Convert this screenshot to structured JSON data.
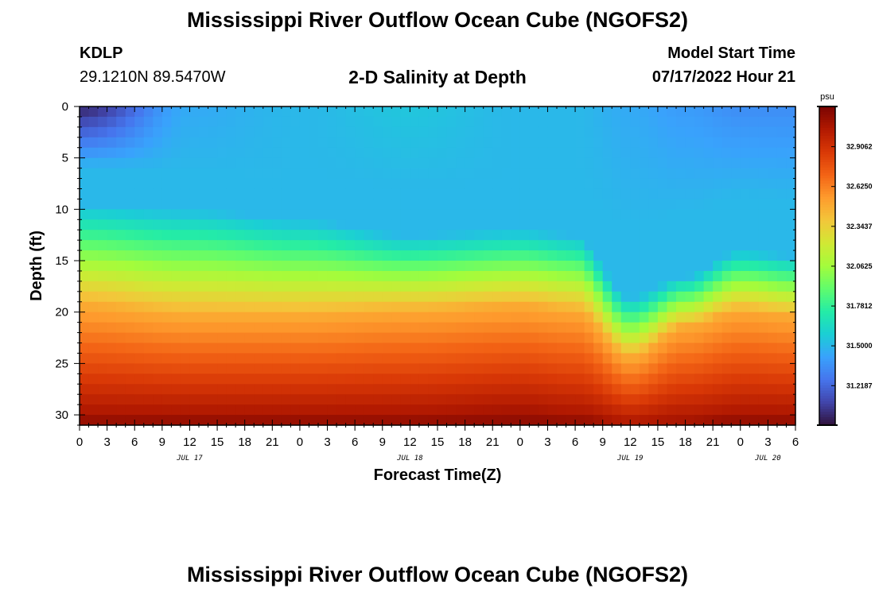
{
  "header": {
    "title": "Mississippi River Outflow Ocean Cube (NGOFS2)",
    "station_id": "KDLP",
    "station_coords": "29.1210N  89.5470W",
    "subtitle": "2-D Salinity at Depth",
    "model_start_label": "Model Start Time",
    "model_start_value": "07/17/2022 Hour 21"
  },
  "footer": {
    "title": "Mississippi River Outflow Ocean Cube (NGOFS2)"
  },
  "chart_data": {
    "type": "heatmap",
    "title": "2-D Salinity at Depth",
    "xlabel": "Forecast Time(Z)",
    "ylabel": "Depth (ft)",
    "x_tick_labels": [
      "0",
      "3",
      "6",
      "9",
      "12",
      "15",
      "18",
      "21",
      "0",
      "3",
      "6",
      "9",
      "12",
      "15",
      "18",
      "21",
      "0",
      "3",
      "6",
      "9",
      "12",
      "15",
      "18",
      "21",
      "0",
      "3",
      "6"
    ],
    "x_range_hours": [
      0,
      78
    ],
    "date_labels": [
      {
        "text": "JUL 17",
        "hour": 12
      },
      {
        "text": "JUL 18",
        "hour": 36
      },
      {
        "text": "JUL 19",
        "hour": 60
      },
      {
        "text": "JUL 20",
        "hour": 75
      }
    ],
    "y_ticks": [
      0,
      5,
      10,
      15,
      20,
      25,
      30
    ],
    "y_range": [
      0,
      31
    ],
    "y_inverted": true,
    "colorbar": {
      "unit": "psu",
      "ticks": [
        "31.2187",
        "31.5000",
        "31.7812",
        "32.0625",
        "32.3437",
        "32.6250",
        "32.9062"
      ],
      "range": [
        30.94,
        33.19
      ],
      "colors": [
        "#30123b",
        "#4145ab",
        "#4675ed",
        "#39a2fc",
        "#1bcfd4",
        "#24eca6",
        "#61fc6c",
        "#a4fc3b",
        "#d1e834",
        "#f3c63a",
        "#fe9b2d",
        "#f36315",
        "#d93806",
        "#b11901",
        "#7a0402"
      ]
    },
    "profile_points": [
      {
        "hour": 0,
        "depth_10": 9.5,
        "depth_20": 19.5,
        "depth_30": 30.0,
        "surface": 31.0
      },
      {
        "hour": 12,
        "depth_10": 10.0,
        "depth_20": 20.5,
        "depth_30": 30.0,
        "surface": 31.45
      },
      {
        "hour": 24,
        "depth_10": 11.0,
        "depth_20": 20.5,
        "depth_30": 30.0,
        "surface": 31.5
      },
      {
        "hour": 36,
        "depth_10": 12.5,
        "depth_20": 20.0,
        "depth_30": 30.0,
        "surface": 31.55
      },
      {
        "hour": 48,
        "depth_10": 12.0,
        "depth_20": 19.5,
        "depth_30": 29.5,
        "surface": 31.5
      },
      {
        "hour": 54,
        "depth_10": 12.5,
        "depth_20": 20.0,
        "depth_30": 30.0,
        "surface": 31.5
      },
      {
        "hour": 60,
        "depth_10": 18.5,
        "depth_20": 24.5,
        "depth_30": 31.0,
        "surface": 31.45
      },
      {
        "hour": 66,
        "depth_10": 16.5,
        "depth_20": 21.5,
        "depth_30": 30.5,
        "surface": 31.4
      },
      {
        "hour": 72,
        "depth_10": 14.0,
        "depth_20": 20.0,
        "depth_30": 30.0,
        "surface": 31.35
      },
      {
        "hour": 78,
        "depth_10": 14.5,
        "depth_20": 20.5,
        "depth_30": 30.0,
        "surface": 31.35
      }
    ]
  }
}
